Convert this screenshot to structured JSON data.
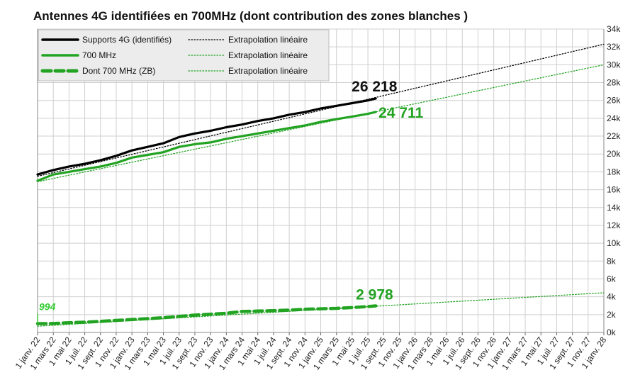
{
  "chart_data": {
    "type": "line",
    "title": "Antennes 4G identifiées en 700MHz (dont contribution des zones blanches )",
    "ylim": [
      0,
      34000
    ],
    "yticks": [
      "0k",
      "2k",
      "4k",
      "6k",
      "8k",
      "10k",
      "12k",
      "14k",
      "16k",
      "18k",
      "20k",
      "22k",
      "24k",
      "26k",
      "28k",
      "30k",
      "32k",
      "34k"
    ],
    "xticks": [
      "1 janv. 22",
      "1 mars 22",
      "1 mai 22",
      "1 juil. 22",
      "1 sept. 22",
      "1 nov. 22",
      "1 janv. 23",
      "1 mars 23",
      "1 mai 23",
      "1 juil. 23",
      "1 sept. 23",
      "1 nov. 23",
      "1 janv. 24",
      "1 mars 24",
      "1 mai 24",
      "1 juil. 24",
      "1 sept. 24",
      "1 nov. 24",
      "1 janv. 25",
      "1 mars 25",
      "1 mai 25",
      "1 juil. 25",
      "1 sept. 25",
      "1 nov. 25",
      "1 janv. 26",
      "1 mars 26",
      "1 mai 26",
      "1 juil. 26",
      "1 sept. 26",
      "1 nov. 26",
      "1 janv. 27",
      "1 mars 27",
      "1 mai 27",
      "1 juil. 27",
      "1 sept. 27",
      "1 nov. 27",
      "1 janv. 28"
    ],
    "grid": true,
    "legend_position": "top-left",
    "series": [
      {
        "name": "Supports 4G (identifiés)",
        "color": "#000000",
        "style": "solid",
        "x": [
          "1 janv. 22",
          "1 mars 22",
          "1 mai 22",
          "1 juil. 22",
          "1 sept. 22",
          "1 nov. 22",
          "1 janv. 23",
          "1 mars 23",
          "1 mai 23",
          "1 juil. 23",
          "1 sept. 23",
          "1 nov. 23",
          "1 janv. 24",
          "1 mars 24",
          "1 mai 24",
          "1 juil. 24",
          "1 sept. 24",
          "1 nov. 24",
          "1 janv. 25",
          "1 mars 25",
          "1 mai 25",
          "1 juil. 25",
          "1 août 25"
        ],
        "values": [
          17700,
          18200,
          18600,
          18900,
          19300,
          19800,
          20400,
          20800,
          21200,
          21900,
          22300,
          22600,
          23000,
          23300,
          23700,
          24000,
          24400,
          24700,
          25100,
          25400,
          25700,
          26000,
          26218
        ]
      },
      {
        "name": "700 MHz",
        "color": "#22a322",
        "style": "solid",
        "x": [
          "1 janv. 22",
          "1 mars 22",
          "1 mai 22",
          "1 juil. 22",
          "1 sept. 22",
          "1 nov. 22",
          "1 janv. 23",
          "1 mars 23",
          "1 mai 23",
          "1 juil. 23",
          "1 sept. 23",
          "1 nov. 23",
          "1 janv. 24",
          "1 mars 24",
          "1 mai 24",
          "1 juil. 24",
          "1 sept. 24",
          "1 nov. 24",
          "1 janv. 25",
          "1 mars 25",
          "1 mai 25",
          "1 juil. 25",
          "1 août 25"
        ],
        "values": [
          17000,
          17700,
          18000,
          18300,
          18600,
          19000,
          19600,
          19900,
          20200,
          20800,
          21100,
          21300,
          21700,
          22000,
          22300,
          22600,
          22900,
          23200,
          23600,
          23900,
          24200,
          24500,
          24711
        ]
      },
      {
        "name": "Dont 700 MHz (ZB)",
        "color": "#22a322",
        "style": "dashed",
        "x": [
          "1 janv. 22",
          "1 mars 22",
          "1 mai 22",
          "1 juil. 22",
          "1 sept. 22",
          "1 nov. 22",
          "1 janv. 23",
          "1 mars 23",
          "1 mai 23",
          "1 juil. 23",
          "1 sept. 23",
          "1 nov. 23",
          "1 janv. 24",
          "1 mars 24",
          "1 mai 24",
          "1 juil. 24",
          "1 sept. 24",
          "1 nov. 24",
          "1 janv. 25",
          "1 mars 25",
          "1 mai 25",
          "1 juil. 25",
          "1 août 25"
        ],
        "values": [
          994,
          1000,
          1100,
          1150,
          1250,
          1350,
          1450,
          1550,
          1650,
          1800,
          1950,
          2050,
          2150,
          2350,
          2400,
          2450,
          2500,
          2600,
          2650,
          2700,
          2800,
          2900,
          2978
        ]
      },
      {
        "name": "Extrapolation linéaire",
        "color": "#000000",
        "style": "dotted",
        "x": [
          "1 janv. 22",
          "1 janv. 28"
        ],
        "values": [
          17500,
          32300
        ]
      },
      {
        "name": "Extrapolation linéaire",
        "color": "#22a322",
        "style": "dotted",
        "x": [
          "1 janv. 22",
          "1 janv. 28"
        ],
        "values": [
          16900,
          30000
        ]
      },
      {
        "name": "Extrapolation linéaire",
        "color": "#22a322",
        "style": "dotted",
        "x": [
          "1 janv. 22",
          "1 janv. 28"
        ],
        "values": [
          700,
          4450
        ]
      }
    ],
    "annotations": [
      {
        "text": "26 218",
        "color": "#111111"
      },
      {
        "text": "24 711",
        "color": "#22a322"
      },
      {
        "text": "2 978",
        "color": "#22a322"
      },
      {
        "text": "994",
        "color": "#33cc33"
      }
    ]
  }
}
